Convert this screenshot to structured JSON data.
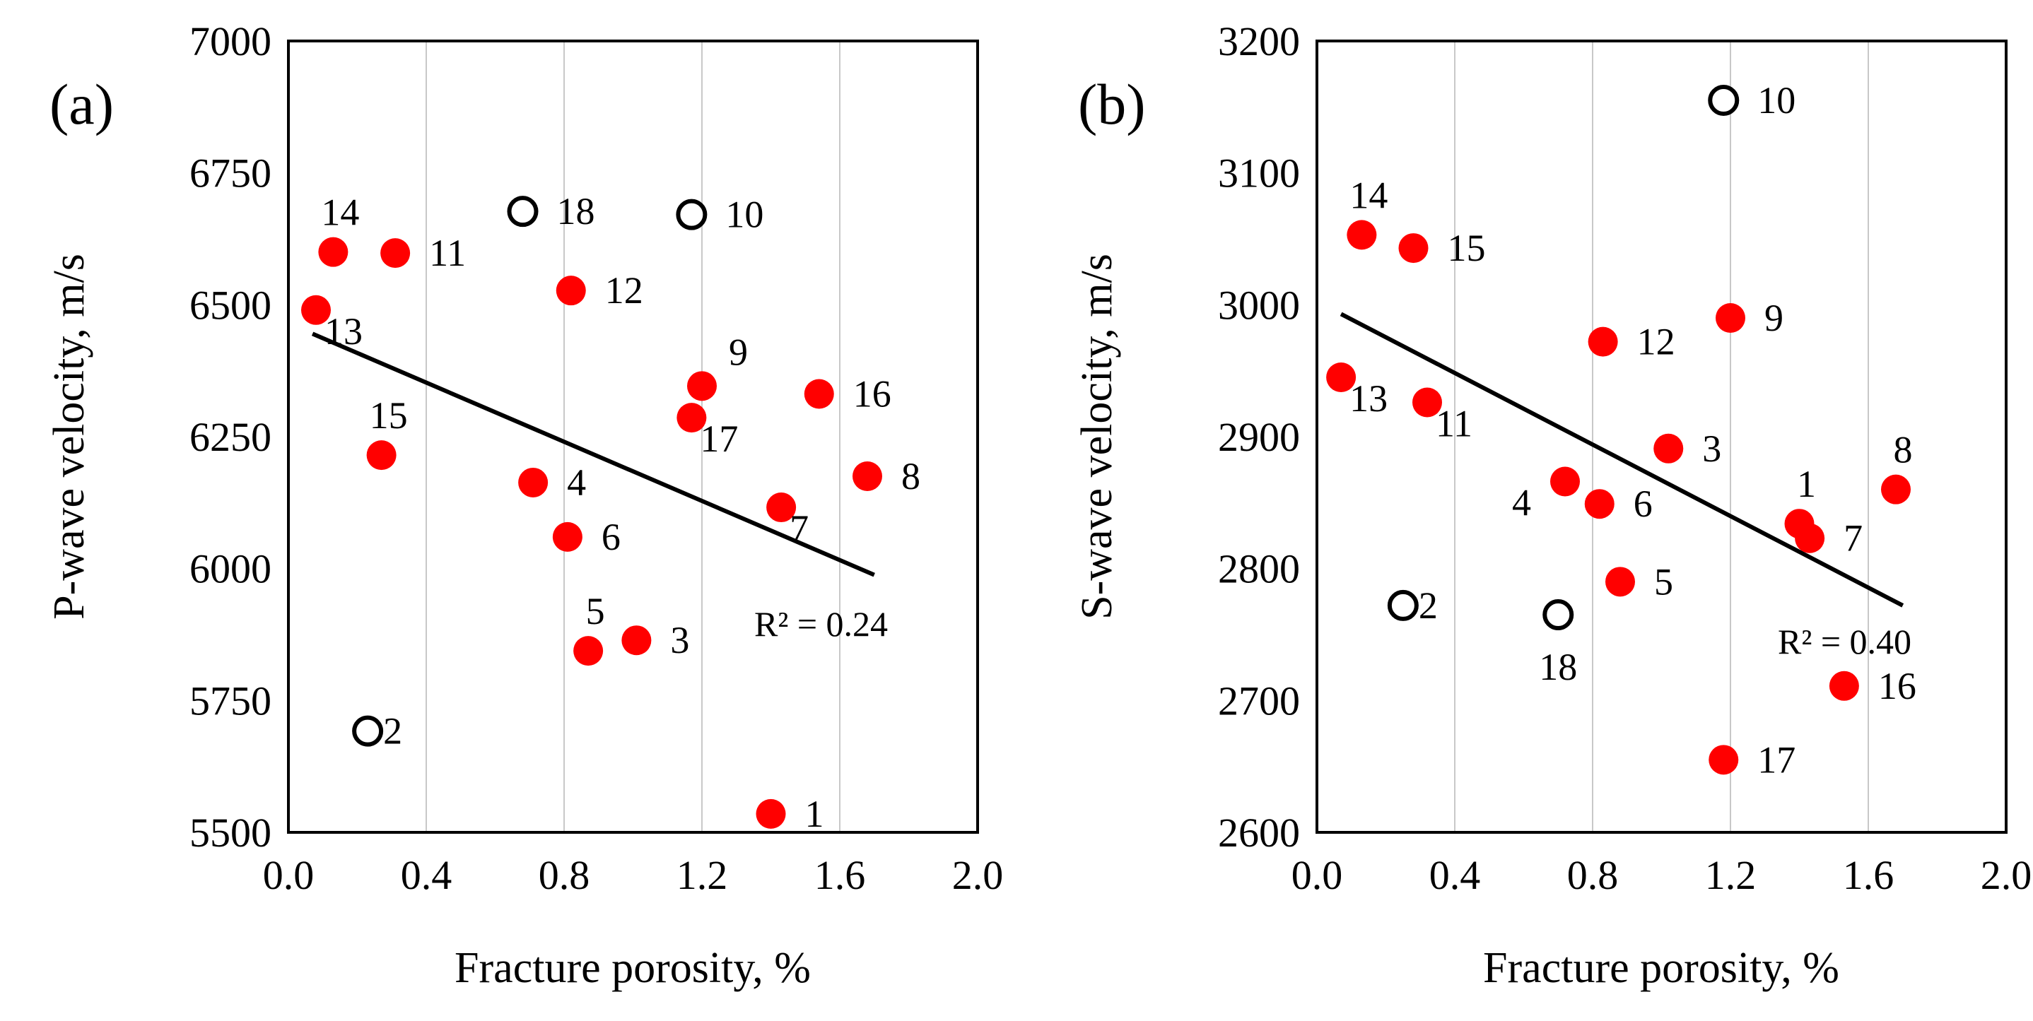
{
  "chart_data": [
    {
      "type": "scatter",
      "panel_label": "(a)",
      "xlabel": "Fracture porosity, %",
      "ylabel": "P-wave velocity,  m/s",
      "xlim": [
        0.0,
        2.0
      ],
      "ylim": [
        5500,
        7000
      ],
      "x_ticks": [
        0.0,
        0.4,
        0.8,
        1.2,
        1.6,
        2.0
      ],
      "x_tick_labels": [
        "0.0",
        "0.4",
        "0.8",
        "1.2",
        "1.6",
        "2.0"
      ],
      "y_ticks": [
        5500,
        5750,
        6000,
        6250,
        6500,
        6750,
        7000
      ],
      "y_tick_labels": [
        "5500",
        "5750",
        "6000",
        "6250",
        "6500",
        "6750",
        "7000"
      ],
      "grid": "vertical",
      "series": [
        {
          "name": "filled",
          "marker": "filled-circle",
          "color": "#ff0000",
          "points": [
            {
              "label": "14",
              "x": 0.13,
              "y": 6600,
              "label_pos": "above"
            },
            {
              "label": "11",
              "x": 0.31,
              "y": 6598,
              "label_pos": "right"
            },
            {
              "label": "13",
              "x": 0.08,
              "y": 6490,
              "label_pos": "below-right"
            },
            {
              "label": "12",
              "x": 0.82,
              "y": 6527,
              "label_pos": "right"
            },
            {
              "label": "15",
              "x": 0.27,
              "y": 6215,
              "label_pos": "above"
            },
            {
              "label": "9",
              "x": 1.2,
              "y": 6346,
              "label_pos": "above-right"
            },
            {
              "label": "17",
              "x": 1.17,
              "y": 6286,
              "label_pos": "below-right"
            },
            {
              "label": "16",
              "x": 1.54,
              "y": 6331,
              "label_pos": "right"
            },
            {
              "label": "8",
              "x": 1.68,
              "y": 6175,
              "label_pos": "right"
            },
            {
              "label": "7",
              "x": 1.43,
              "y": 6116,
              "label_pos": "below-right"
            },
            {
              "label": "4",
              "x": 0.71,
              "y": 6163,
              "label_pos": "right"
            },
            {
              "label": "6",
              "x": 0.81,
              "y": 6060,
              "label_pos": "right"
            },
            {
              "label": "5",
              "x": 0.87,
              "y": 5844,
              "label_pos": "above"
            },
            {
              "label": "3",
              "x": 1.01,
              "y": 5864,
              "label_pos": "right"
            },
            {
              "label": "1",
              "x": 1.4,
              "y": 5535,
              "label_pos": "right"
            }
          ]
        },
        {
          "name": "open",
          "marker": "open-circle",
          "color": "#000000",
          "points": [
            {
              "label": "18",
              "x": 0.68,
              "y": 6677,
              "label_pos": "right"
            },
            {
              "label": "10",
              "x": 1.17,
              "y": 6671,
              "label_pos": "right"
            },
            {
              "label": "2",
              "x": 0.23,
              "y": 5692,
              "label_pos": "right-tight"
            }
          ]
        }
      ],
      "trendline": {
        "x": [
          0.07,
          1.7
        ],
        "y": [
          6445,
          5988
        ]
      },
      "annotation": "R² = 0.24"
    },
    {
      "type": "scatter",
      "panel_label": "(b)",
      "xlabel": "Fracture porosity, %",
      "ylabel": "S-wave velocity,  m/s",
      "xlim": [
        0.0,
        2.0
      ],
      "ylim": [
        2600,
        3200
      ],
      "x_ticks": [
        0.0,
        0.4,
        0.8,
        1.2,
        1.6,
        2.0
      ],
      "x_tick_labels": [
        "0.0",
        "0.4",
        "0.8",
        "1.2",
        "1.6",
        "2.0"
      ],
      "y_ticks": [
        2600,
        2700,
        2800,
        2900,
        3000,
        3100,
        3200
      ],
      "y_tick_labels": [
        "2600",
        "2700",
        "2800",
        "2900",
        "3000",
        "3100",
        "3200"
      ],
      "grid": "vertical",
      "series": [
        {
          "name": "filled",
          "marker": "filled-circle",
          "color": "#ff0000",
          "points": [
            {
              "label": "14",
              "x": 0.13,
              "y": 3053,
              "label_pos": "above"
            },
            {
              "label": "15",
              "x": 0.28,
              "y": 3043,
              "label_pos": "right"
            },
            {
              "label": "13",
              "x": 0.07,
              "y": 2945,
              "label_pos": "below-right"
            },
            {
              "label": "11",
              "x": 0.32,
              "y": 2926,
              "label_pos": "below-right"
            },
            {
              "label": "12",
              "x": 0.83,
              "y": 2972,
              "label_pos": "right"
            },
            {
              "label": "9",
              "x": 1.2,
              "y": 2990,
              "label_pos": "right"
            },
            {
              "label": "3",
              "x": 1.02,
              "y": 2891,
              "label_pos": "right"
            },
            {
              "label": "4",
              "x": 0.72,
              "y": 2866,
              "label_pos": "below-left"
            },
            {
              "label": "6",
              "x": 0.82,
              "y": 2849,
              "label_pos": "right"
            },
            {
              "label": "5",
              "x": 0.88,
              "y": 2790,
              "label_pos": "right"
            },
            {
              "label": "1",
              "x": 1.4,
              "y": 2834,
              "label_pos": "above"
            },
            {
              "label": "7",
              "x": 1.43,
              "y": 2823,
              "label_pos": "right"
            },
            {
              "label": "8",
              "x": 1.68,
              "y": 2860,
              "label_pos": "above"
            },
            {
              "label": "16",
              "x": 1.53,
              "y": 2711,
              "label_pos": "right"
            },
            {
              "label": "17",
              "x": 1.18,
              "y": 2655,
              "label_pos": "right"
            }
          ]
        },
        {
          "name": "open",
          "marker": "open-circle",
          "color": "#000000",
          "points": [
            {
              "label": "10",
              "x": 1.18,
              "y": 3155,
              "label_pos": "right"
            },
            {
              "label": "2",
              "x": 0.25,
              "y": 2772,
              "label_pos": "right-tight"
            },
            {
              "label": "18",
              "x": 0.7,
              "y": 2765,
              "label_pos": "below"
            }
          ]
        }
      ],
      "trendline": {
        "x": [
          0.07,
          1.7
        ],
        "y": [
          2993,
          2772
        ]
      },
      "annotation": "R² = 0.40"
    }
  ]
}
